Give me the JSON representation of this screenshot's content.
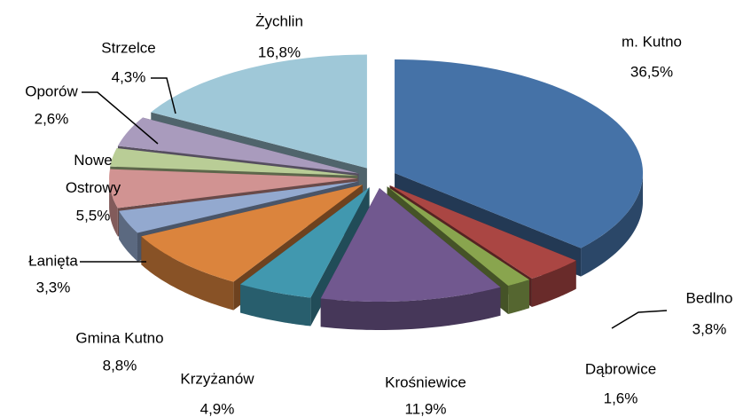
{
  "chart_data": {
    "type": "pie3d",
    "categories": [
      "m. Kutno",
      "Bedlno",
      "Dąbrowice",
      "Krośniewice",
      "Krzyżanów",
      "Gmina Kutno",
      "Łanięta",
      "Nowe Ostrowy",
      "Oporów",
      "Strzelce",
      "Żychlin"
    ],
    "values": [
      36.5,
      3.8,
      1.6,
      11.9,
      4.9,
      8.8,
      3.3,
      5.5,
      2.6,
      4.3,
      16.8
    ],
    "value_labels": [
      "36,5%",
      "3,8%",
      "1,6%",
      "11,9%",
      "4,9%",
      "8,8%",
      "3,3%",
      "5,5%",
      "2,6%",
      "4,3%",
      "16,8%"
    ],
    "colors": [
      "#4572a7",
      "#aa4643",
      "#89a54e",
      "#71588f",
      "#4198af",
      "#db843d",
      "#93a9cf",
      "#d19392",
      "#b9cd96",
      "#a99bbd",
      "#9fc8d8"
    ]
  }
}
